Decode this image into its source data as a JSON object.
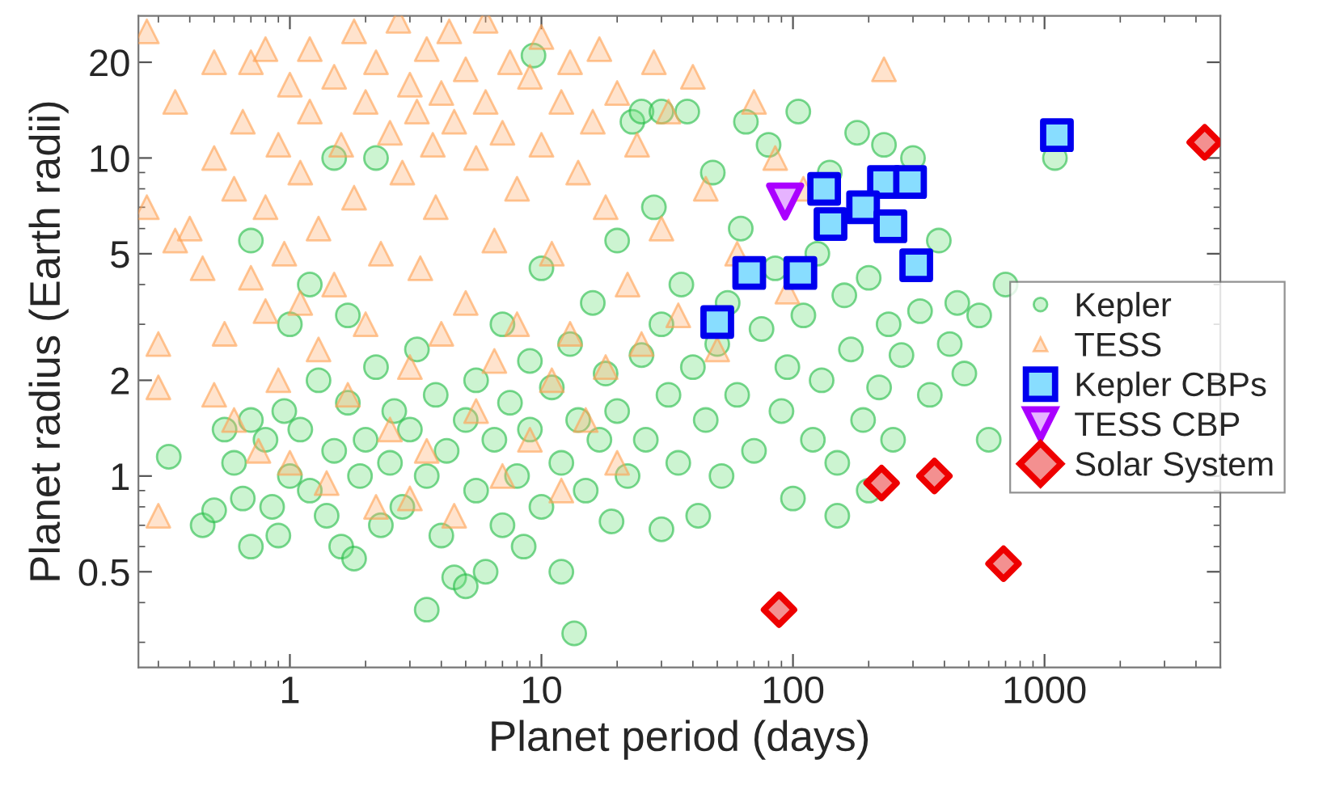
{
  "chart_data": {
    "type": "scatter",
    "xlabel": "Planet period (days)",
    "ylabel": "Planet radius (Earth radii)",
    "log": "xy",
    "xlim": [
      0.25,
      5000
    ],
    "ylim": [
      0.25,
      28
    ],
    "xticks": [
      1,
      10,
      100,
      1000
    ],
    "yticks": [
      0.5,
      1,
      2,
      5,
      10,
      20
    ],
    "legend": "right",
    "grid": false,
    "series": [
      {
        "name": "Kepler",
        "color": "#22bb44",
        "marker": "circle",
        "x": [
          0.33,
          0.45,
          0.5,
          0.55,
          0.6,
          0.65,
          0.7,
          0.7,
          0.8,
          0.85,
          0.9,
          0.95,
          1.0,
          1.1,
          1.2,
          1.3,
          1.4,
          1.5,
          1.6,
          1.7,
          1.8,
          1.9,
          2.0,
          2.2,
          2.3,
          2.5,
          2.6,
          2.8,
          3.0,
          3.2,
          3.5,
          3.5,
          3.8,
          4.0,
          4.2,
          4.5,
          5.0,
          5.0,
          5.5,
          5.5,
          6,
          6.5,
          7,
          7,
          7.5,
          8,
          8.5,
          9,
          9,
          10,
          10,
          11,
          12,
          12,
          13,
          13.5,
          14,
          15,
          16,
          17,
          18,
          19,
          20,
          20,
          22,
          23,
          25,
          26,
          28,
          30,
          30,
          32,
          35,
          36,
          38,
          40,
          42,
          45,
          48,
          50,
          52,
          55,
          60,
          62,
          65,
          70,
          75,
          80,
          85,
          90,
          95,
          100,
          105,
          110,
          120,
          125,
          130,
          140,
          150,
          160,
          170,
          180,
          190,
          200,
          220,
          230,
          240,
          250,
          270,
          300,
          320,
          350,
          380,
          420,
          450,
          480,
          550,
          700,
          1100,
          600,
          150,
          200,
          9.3,
          1.5,
          2.2,
          0.7,
          1.0,
          1.7,
          1.2,
          25,
          30
        ],
        "values": [
          1.15,
          0.7,
          0.78,
          1.4,
          1.1,
          0.85,
          0.6,
          1.5,
          1.3,
          0.8,
          0.65,
          1.6,
          1.0,
          1.4,
          0.9,
          2.0,
          0.75,
          1.2,
          0.6,
          1.7,
          0.55,
          1.0,
          1.3,
          2.2,
          0.7,
          1.1,
          1.6,
          0.8,
          1.4,
          2.5,
          0.38,
          1.0,
          1.8,
          0.65,
          1.2,
          0.48,
          1.5,
          0.45,
          2.0,
          0.9,
          0.5,
          1.3,
          3.0,
          0.7,
          1.7,
          1.0,
          0.6,
          2.3,
          1.4,
          0.8,
          4.5,
          1.9,
          1.1,
          0.5,
          2.6,
          0.32,
          1.5,
          0.9,
          3.5,
          1.3,
          2.1,
          0.72,
          5.5,
          1.6,
          1.0,
          13,
          2.4,
          1.3,
          7,
          0.68,
          3.0,
          1.8,
          1.1,
          4.0,
          14,
          2.2,
          0.75,
          1.5,
          9,
          2.6,
          1.0,
          3.5,
          1.8,
          6,
          13,
          1.2,
          2.9,
          11,
          4.5,
          1.6,
          2.2,
          0.85,
          14,
          3.2,
          1.3,
          5,
          2.0,
          9,
          1.1,
          3.7,
          2.5,
          12,
          1.5,
          4.2,
          1.9,
          11,
          3.0,
          1.3,
          2.4,
          10,
          3.3,
          1.8,
          5.5,
          2.6,
          3.5,
          2.1,
          3.2,
          4.0,
          10,
          1.3,
          0.75,
          0.9,
          21,
          10,
          10,
          5.5,
          3.0,
          3.2,
          4.0,
          14,
          14
        ]
      },
      {
        "name": "TESS",
        "color": "#ffa050",
        "marker": "triangle",
        "x": [
          0.27,
          0.27,
          0.3,
          0.3,
          0.3,
          0.35,
          0.35,
          0.4,
          0.45,
          0.5,
          0.5,
          0.5,
          0.55,
          0.6,
          0.6,
          0.65,
          0.7,
          0.7,
          0.75,
          0.8,
          0.8,
          0.8,
          0.9,
          0.9,
          0.95,
          1.0,
          1.0,
          1.1,
          1.1,
          1.2,
          1.2,
          1.3,
          1.3,
          1.4,
          1.5,
          1.5,
          1.6,
          1.7,
          1.8,
          1.8,
          2.0,
          2.0,
          2.2,
          2.2,
          2.3,
          2.5,
          2.5,
          2.7,
          2.8,
          3.0,
          3.0,
          3.2,
          3.3,
          3.5,
          3.5,
          3.7,
          3.8,
          4.0,
          4.0,
          4.3,
          4.5,
          4.5,
          5.0,
          5.0,
          5.5,
          5.5,
          6,
          6,
          6.5,
          6.5,
          7,
          7,
          7.5,
          8,
          8,
          9,
          9,
          10,
          10,
          11,
          11,
          12,
          13,
          13,
          14,
          15,
          16,
          17,
          18,
          18,
          20,
          22,
          24,
          25,
          28,
          30,
          32,
          35,
          40,
          45,
          50,
          60,
          70,
          85,
          95,
          110,
          230,
          20,
          12,
          3
        ],
        "values": [
          25,
          7,
          2.6,
          1.9,
          0.75,
          15,
          5.5,
          6,
          4.5,
          20,
          10,
          1.8,
          2.8,
          8,
          1.5,
          13,
          4.2,
          20,
          1.2,
          22,
          7,
          3.3,
          11,
          2.0,
          5,
          17,
          1.1,
          9,
          3.5,
          22,
          14,
          6,
          2.5,
          0.95,
          18,
          4,
          11,
          1.8,
          25,
          7.5,
          15,
          3.0,
          0.8,
          20,
          5,
          12,
          1.4,
          27,
          9,
          17,
          2.2,
          14,
          4.5,
          22,
          1.2,
          11,
          7,
          16,
          2.8,
          25,
          13,
          0.75,
          19,
          3.5,
          10,
          1.6,
          27,
          15,
          5.5,
          2.3,
          12,
          1.0,
          20,
          8,
          3.0,
          18,
          1.3,
          24,
          11,
          5,
          2.0,
          15,
          20,
          2.8,
          9,
          1.5,
          13,
          22,
          7,
          2.2,
          16,
          4,
          11,
          2.6,
          20,
          6,
          14,
          3.2,
          18,
          8,
          2.5,
          5,
          15,
          10,
          3.8,
          8,
          19,
          1.1,
          0.9,
          0.85
        ]
      },
      {
        "name": "Kepler CBPs",
        "color": "#0000ee",
        "marker": "square",
        "x": [
          1120,
          133,
          230,
          292,
          190,
          141,
          244,
          309,
          67,
          107,
          50
        ],
        "values": [
          11.8,
          8.0,
          8.4,
          8.4,
          7.0,
          6.2,
          6.1,
          4.6,
          4.35,
          4.35,
          3.05
        ]
      },
      {
        "name": "TESS CBP",
        "color": "#aa00ff",
        "marker": "triangle_down",
        "x": [
          93
        ],
        "values": [
          7.3
        ]
      },
      {
        "name": "Solar System",
        "color": "#ee0000",
        "marker": "diamond",
        "x": [
          88,
          225,
          365,
          687,
          4333
        ],
        "values": [
          0.38,
          0.95,
          1.0,
          0.53,
          11.2
        ]
      }
    ]
  }
}
